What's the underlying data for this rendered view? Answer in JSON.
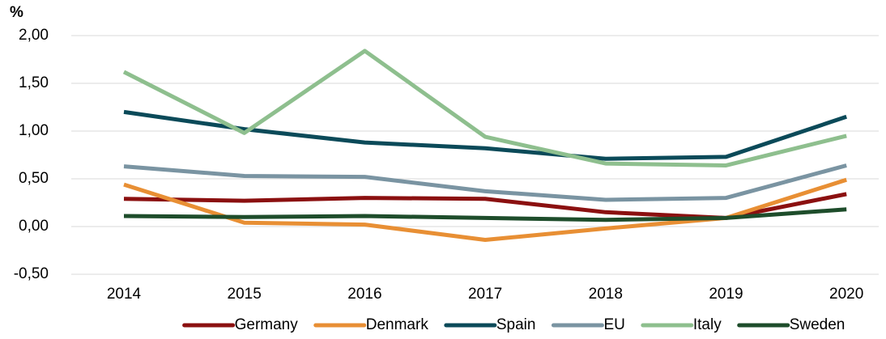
{
  "chart_data": {
    "type": "line",
    "y_label": "%",
    "categories": [
      "2014",
      "2015",
      "2016",
      "2017",
      "2018",
      "2019",
      "2020"
    ],
    "series": [
      {
        "name": "Germany",
        "color": "#8b1010",
        "values": [
          0.29,
          0.27,
          0.3,
          0.29,
          0.15,
          0.09,
          0.34
        ]
      },
      {
        "name": "Denmark",
        "color": "#e88f34",
        "values": [
          0.44,
          0.04,
          0.02,
          -0.14,
          -0.02,
          0.09,
          0.49
        ]
      },
      {
        "name": "Spain",
        "color": "#0b4a59",
        "values": [
          1.2,
          1.02,
          0.88,
          0.82,
          0.71,
          0.73,
          1.15
        ]
      },
      {
        "name": "EU",
        "color": "#7a94a2",
        "values": [
          0.63,
          0.53,
          0.52,
          0.37,
          0.28,
          0.3,
          0.64
        ]
      },
      {
        "name": "Italy",
        "color": "#8ebf8e",
        "values": [
          1.62,
          0.98,
          1.84,
          0.94,
          0.66,
          0.64,
          0.95
        ]
      },
      {
        "name": "Sweden",
        "color": "#1e4d2b",
        "values": [
          0.11,
          0.1,
          0.11,
          0.09,
          0.07,
          0.09,
          0.18
        ]
      }
    ],
    "ylim": [
      -0.5,
      2.0
    ],
    "yticks": [
      {
        "value": -0.5,
        "label": "-0,50"
      },
      {
        "value": 0,
        "label": "0,00"
      },
      {
        "value": 0.5,
        "label": "0,50"
      },
      {
        "value": 1,
        "label": "1,00"
      },
      {
        "value": 1.5,
        "label": "1,50"
      },
      {
        "value": 2,
        "label": "2,00"
      }
    ],
    "grid": true,
    "legend": "bottom"
  }
}
